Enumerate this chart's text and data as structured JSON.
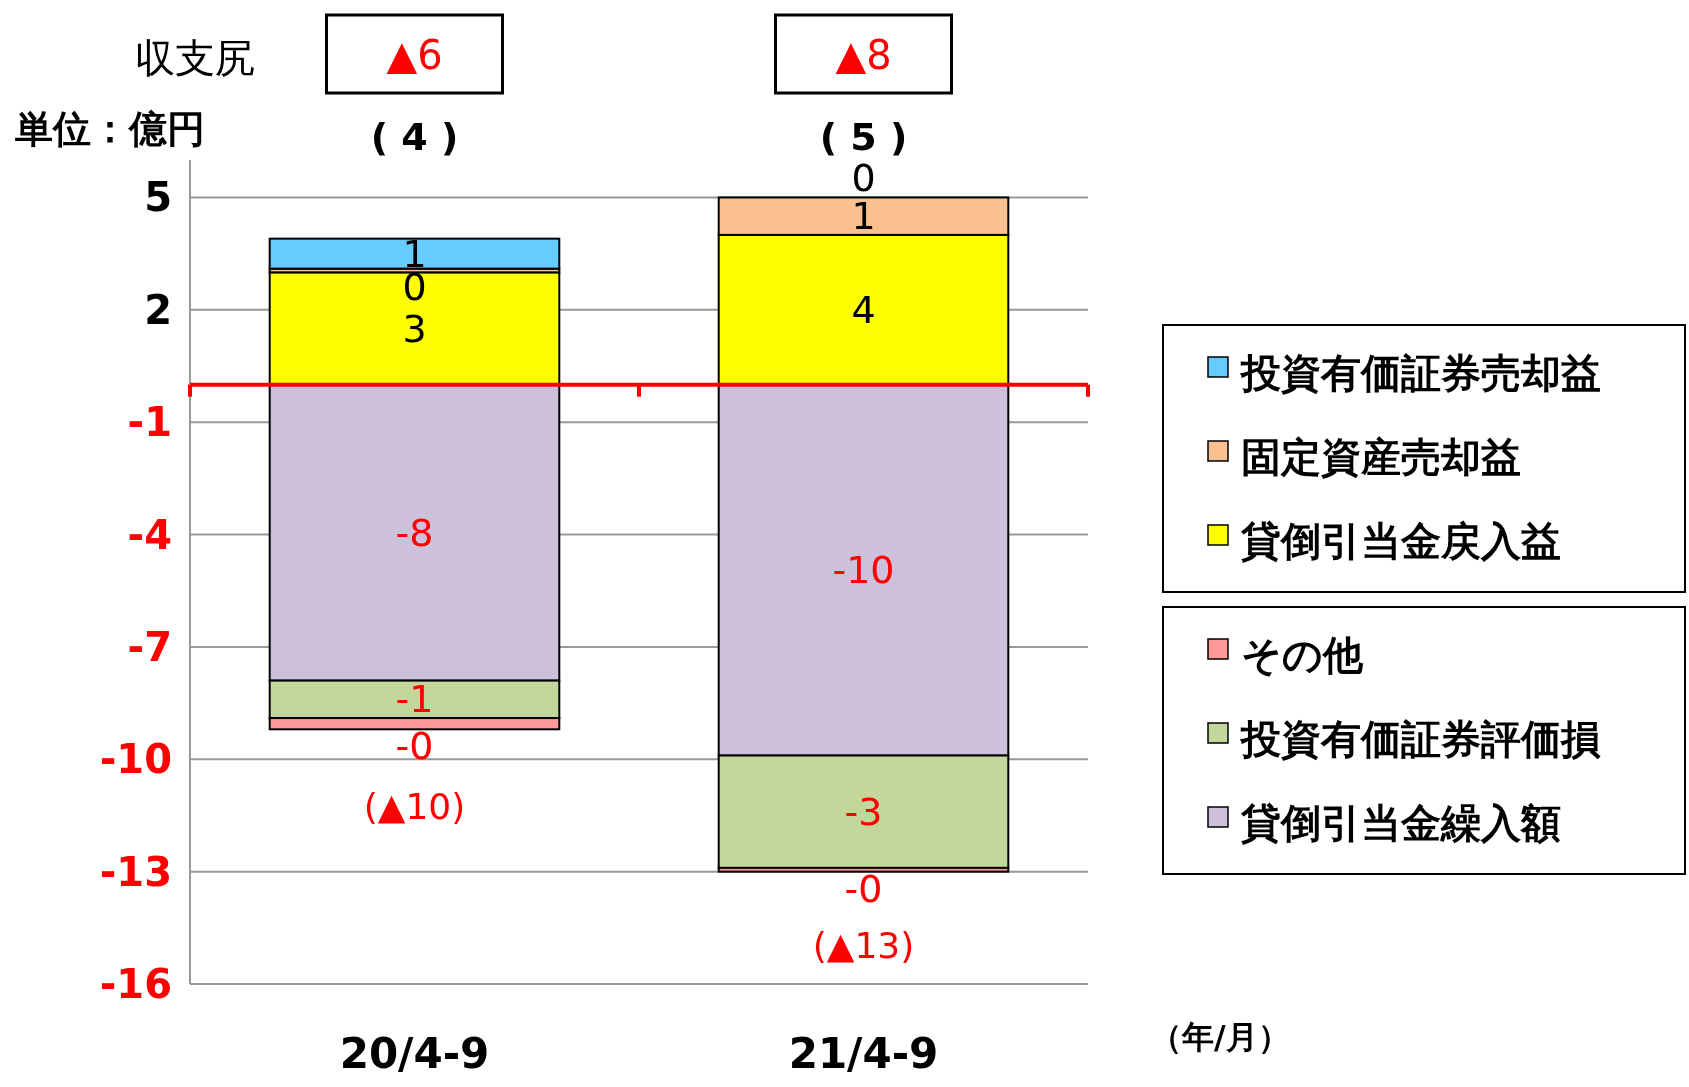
{
  "chart_data": {
    "type": "bar",
    "stacked": true,
    "categories": [
      "20/4-9",
      "21/4-9"
    ],
    "series": [
      {
        "name": "貸倒引当金戻入益",
        "color": "#ffff00",
        "values": [
          3.0,
          4.0
        ],
        "value_labels": [
          "3",
          "4"
        ]
      },
      {
        "name": "固定資産売却益",
        "color": "#fac090",
        "values": [
          0.1,
          1.0
        ],
        "value_labels": [
          "0",
          "1"
        ]
      },
      {
        "name": "投資有価証券売却益",
        "color": "#66ccff",
        "values": [
          0.8,
          0
        ],
        "value_labels": [
          "1",
          "0"
        ]
      },
      {
        "name": "貸倒引当金繰入額",
        "color": "#ccc0da",
        "values": [
          -7.9,
          -9.9
        ],
        "value_labels": [
          "-8",
          "-10"
        ]
      },
      {
        "name": "投資有価証券評価損",
        "color": "#c4d79b",
        "values": [
          -1.0,
          -3.0
        ],
        "value_labels": [
          "-1",
          "-3"
        ]
      },
      {
        "name": "その他",
        "color": "#ff9999",
        "values": [
          -0.3,
          -0.1
        ],
        "value_labels": [
          "-0",
          "-0"
        ]
      }
    ],
    "totals": [
      "( 4 )",
      "( 5 )"
    ],
    "ylim": [
      -16,
      6
    ],
    "yticks": [
      -16,
      -13,
      -10,
      -7,
      -4,
      -1,
      2,
      5
    ],
    "grid": "y",
    "legend": "right",
    "ref_lines": [
      {
        "axis": "y",
        "value": 0,
        "color": "#ff0000"
      }
    ],
    "annotations": [
      "収支尻",
      "単位：億円",
      "（年/月）",
      "▲6",
      "▲8",
      {
        "text": "(▲10)",
        "x": "20/4-9",
        "y": -9.2
      },
      {
        "text": "(▲13)",
        "x": "21/4-9",
        "y": -12.9
      }
    ]
  }
}
